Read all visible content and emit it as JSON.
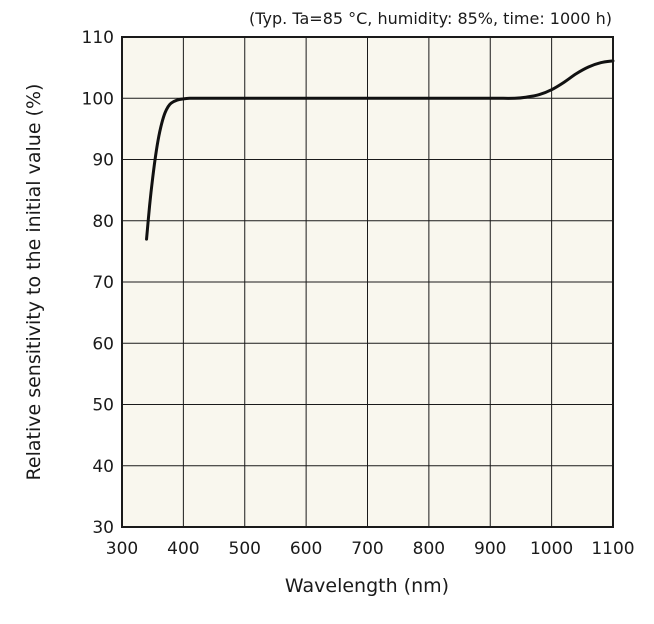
{
  "chart_data": {
    "type": "line",
    "annotation": "(Typ. Ta=85 °C, humidity: 85%, time: 1000 h)",
    "xlabel": "Wavelength (nm)",
    "ylabel": "Relative sensitivity to the initial value (%)",
    "xlim": [
      300,
      1100
    ],
    "ylim": [
      30,
      110
    ],
    "xticks": [
      300,
      400,
      500,
      600,
      700,
      800,
      900,
      1000,
      1100
    ],
    "yticks": [
      30,
      40,
      50,
      60,
      70,
      80,
      90,
      100,
      110
    ],
    "grid": true,
    "legend": "none",
    "colors": {
      "background": "#f9f7ee",
      "grid": "#1a1a1a",
      "line": "#111111"
    },
    "series": [
      {
        "x": [
          340,
          345,
          350,
          355,
          360,
          365,
          370,
          375,
          380,
          390,
          400,
          410,
          420,
          450,
          500,
          600,
          700,
          800,
          900,
          940,
          960,
          980,
          1000,
          1020,
          1040,
          1060,
          1080,
          1100
        ],
        "y": [
          77,
          82.5,
          87,
          90.8,
          93.8,
          96,
          97.6,
          98.6,
          99.2,
          99.7,
          99.9,
          100,
          100,
          100,
          100,
          100,
          100,
          100,
          100,
          100,
          100.2,
          100.6,
          101.4,
          102.6,
          104.0,
          105.1,
          105.8,
          106.1
        ]
      }
    ]
  }
}
